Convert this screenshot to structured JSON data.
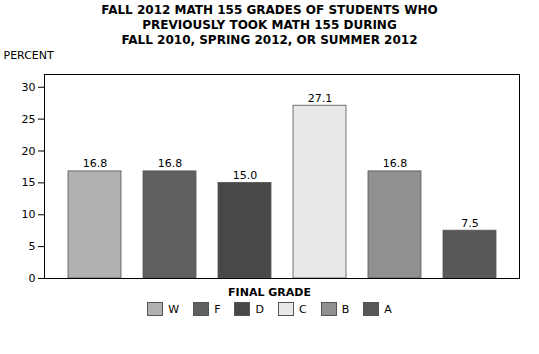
{
  "chart_data": {
    "type": "bar",
    "title": "FALL 2012 MATH 155 GRADES OF STUDENTS WHO\nPREVIOUSLY TOOK MATH 155 DURING\nFALL 2010, SPRING 2012, OR SUMMER 2012",
    "y_label": "PERCENT",
    "legend_title": "FINAL GRADE",
    "categories": [
      "W",
      "F",
      "D",
      "C",
      "B",
      "A"
    ],
    "values": [
      16.8,
      16.8,
      15.0,
      27.1,
      16.8,
      7.5
    ],
    "value_labels": [
      "16.8",
      "16.8",
      "15.0",
      "27.1",
      "16.8",
      "7.5"
    ],
    "colors": [
      "#b0b0b0",
      "#606060",
      "#484848",
      "#e8e8e8",
      "#909090",
      "#585858"
    ],
    "ylim": [
      0,
      32
    ],
    "yticks": [
      0,
      5,
      10,
      15,
      20,
      25,
      30
    ],
    "data_labels": true,
    "tick_labels": "y",
    "legend": "bottom",
    "grid": false
  }
}
